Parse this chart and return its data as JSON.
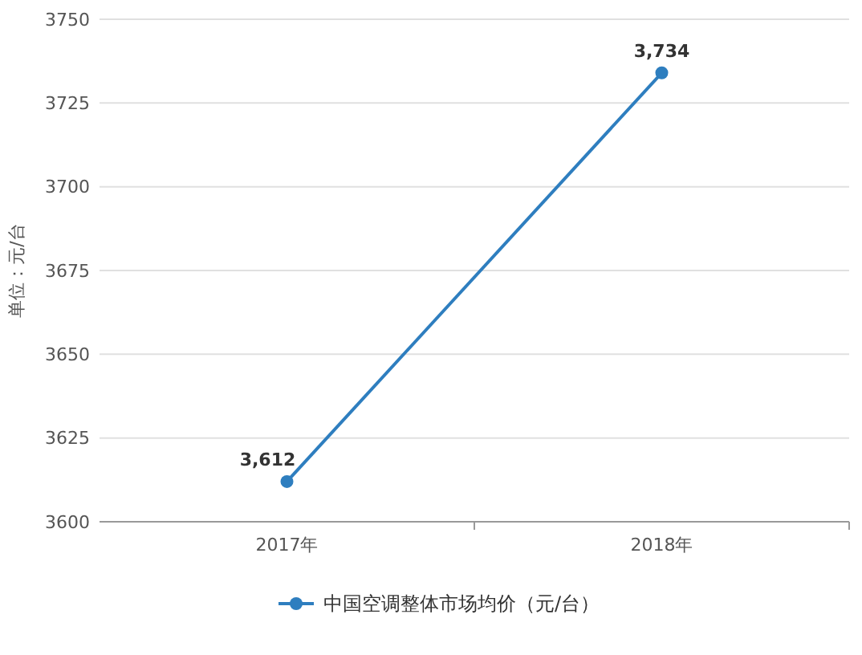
{
  "chart_data": {
    "type": "line",
    "ylabel": "单位：元/台",
    "categories": [
      "2017年",
      "2018年"
    ],
    "series": [
      {
        "name": "中国空调整体市场均价（元/台）",
        "color": "#2e7ebf",
        "values": [
          3612,
          3734
        ],
        "value_labels": [
          "3,612",
          "3,734"
        ]
      }
    ],
    "ylim": [
      3600,
      3750
    ],
    "yticks": [
      3600,
      3625,
      3650,
      3675,
      3700,
      3725,
      3750
    ],
    "grid": "y",
    "legend": "bottom",
    "marker": "circle"
  }
}
